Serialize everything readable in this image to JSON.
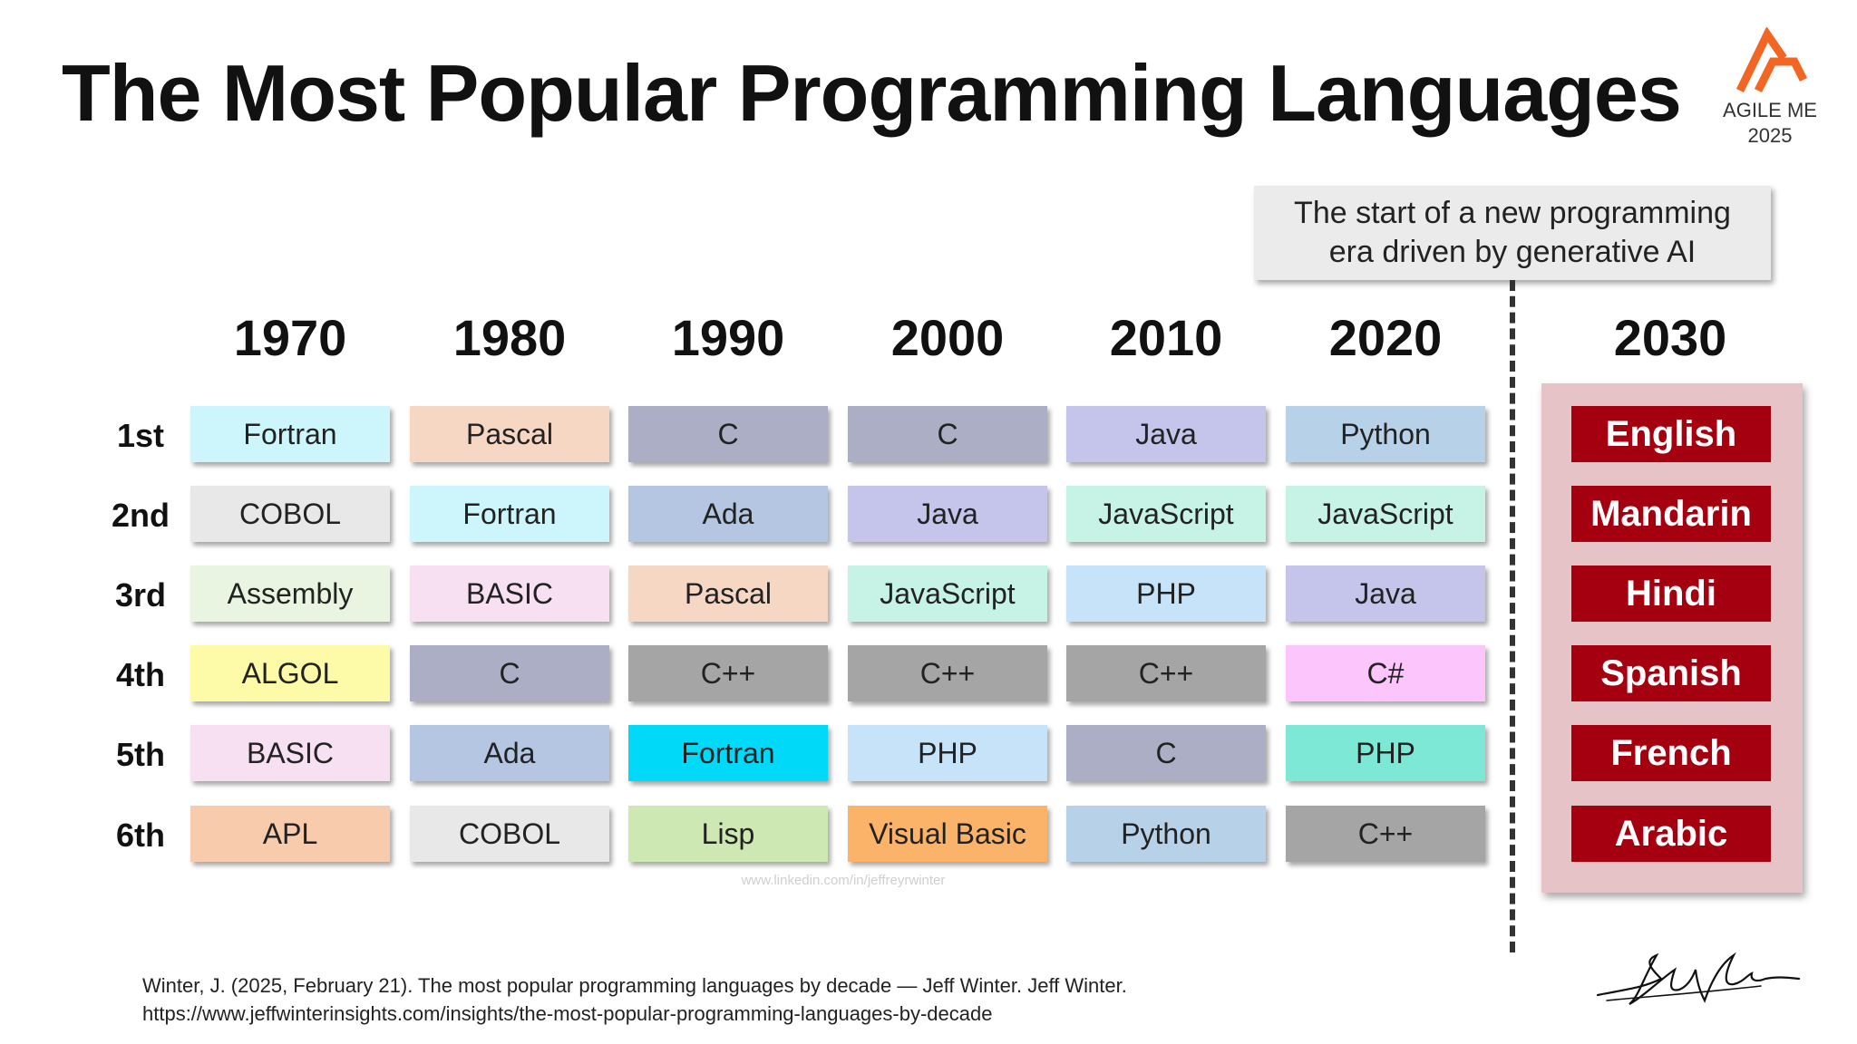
{
  "title": "The Most Popular Programming Languages",
  "logo": {
    "text_line1": "AGILE ME",
    "text_line2": "2025",
    "accent_color": "#f26522"
  },
  "callout": {
    "line1": "The start of a new programming",
    "line2": "era driven by generative AI"
  },
  "ranks": [
    "1st",
    "2nd",
    "3rd",
    "4th",
    "5th",
    "6th"
  ],
  "decades": [
    {
      "year": "1970",
      "languages": [
        {
          "name": "Fortran",
          "color": "#ccf6fc"
        },
        {
          "name": "COBOL",
          "color": "#e8e8e8"
        },
        {
          "name": "Assembly",
          "color": "#e9f5e1"
        },
        {
          "name": "ALGOL",
          "color": "#fdfaa8"
        },
        {
          "name": "BASIC",
          "color": "#f6e0f2"
        },
        {
          "name": "APL",
          "color": "#f8cbad"
        }
      ]
    },
    {
      "year": "1980",
      "languages": [
        {
          "name": "Pascal",
          "color": "#f6d7c3"
        },
        {
          "name": "Fortran",
          "color": "#ccf6fc"
        },
        {
          "name": "BASIC",
          "color": "#f6e0f2"
        },
        {
          "name": "C",
          "color": "#abaec5"
        },
        {
          "name": "Ada",
          "color": "#b4c6e2"
        },
        {
          "name": "COBOL",
          "color": "#e8e8e8"
        }
      ]
    },
    {
      "year": "1990",
      "languages": [
        {
          "name": "C",
          "color": "#abaec5"
        },
        {
          "name": "Ada",
          "color": "#b4c6e2"
        },
        {
          "name": "Pascal",
          "color": "#f6d7c3"
        },
        {
          "name": "C++",
          "color": "#a5a5a5"
        },
        {
          "name": "Fortran",
          "color": "#00d9f7"
        },
        {
          "name": "Lisp",
          "color": "#cde8b3"
        }
      ]
    },
    {
      "year": "2000",
      "languages": [
        {
          "name": "C",
          "color": "#abaec5"
        },
        {
          "name": "Java",
          "color": "#c5c5ec"
        },
        {
          "name": "JavaScript",
          "color": "#c6f3e6"
        },
        {
          "name": "C++",
          "color": "#a5a5a5"
        },
        {
          "name": "PHP",
          "color": "#c6e3fa"
        },
        {
          "name": "Visual Basic",
          "color": "#fbb36a"
        }
      ]
    },
    {
      "year": "2010",
      "languages": [
        {
          "name": "Java",
          "color": "#c5c5ec"
        },
        {
          "name": "JavaScript",
          "color": "#c6f3e6"
        },
        {
          "name": "PHP",
          "color": "#c6e3fa"
        },
        {
          "name": "C++",
          "color": "#a5a5a5"
        },
        {
          "name": "C",
          "color": "#abaec5"
        },
        {
          "name": "Python",
          "color": "#b7d2e8"
        }
      ]
    },
    {
      "year": "2020",
      "languages": [
        {
          "name": "Python",
          "color": "#b7d2e8"
        },
        {
          "name": "JavaScript",
          "color": "#c6f3e6"
        },
        {
          "name": "Java",
          "color": "#c5c5ec"
        },
        {
          "name": "C#",
          "color": "#fcc6fc"
        },
        {
          "name": "PHP",
          "color": "#7de8d6"
        },
        {
          "name": "C++",
          "color": "#a5a5a5"
        }
      ]
    }
  ],
  "future": {
    "year": "2030",
    "box_color": "#e6c3c6",
    "cell_color": "#a4000f",
    "languages": [
      "English",
      "Mandarin",
      "Hindi",
      "Spanish",
      "French",
      "Arabic"
    ]
  },
  "watermark": "www.linkedin.com/in/jeffreyrwinter",
  "citation": {
    "line1": "Winter, J. (2025, February 21). The most popular programming languages by decade — Jeff Winter. Jeff Winter.",
    "line2": "https://www.jeffwinterinsights.com/insights/the-most-popular-programming-languages-by-decade"
  }
}
